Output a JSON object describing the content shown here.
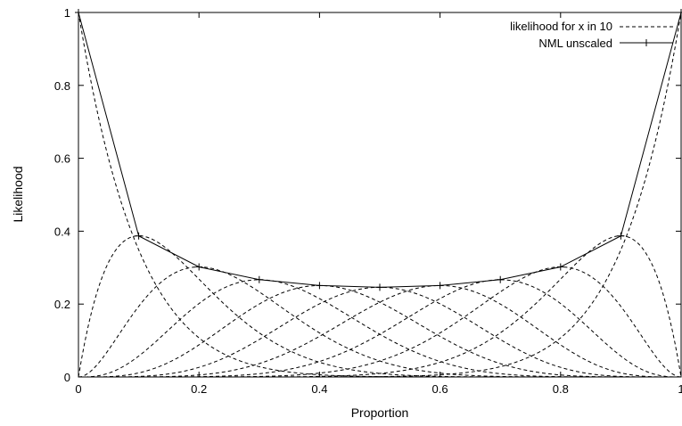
{
  "chart_data": {
    "type": "line",
    "title": "",
    "xlabel": "Proportion",
    "ylabel": "Likelihood",
    "xlim": [
      0,
      1
    ],
    "ylim": [
      0,
      1
    ],
    "grid": false,
    "legend_position": "top-right",
    "x_ticks": [
      "0",
      "0.2",
      "0.4",
      "0.6",
      "0.8",
      "1"
    ],
    "y_ticks": [
      "0",
      "0.2",
      "0.4",
      "0.6",
      "0.8",
      "1"
    ],
    "series": [
      {
        "name": "likelihood for x in 10",
        "style": "dashed",
        "color": "#000000",
        "function": "binomial likelihood C(10,k) p^k (1-p)^(10-k)",
        "n": 10,
        "k_values": [
          0,
          1,
          2,
          3,
          4,
          5,
          6,
          7,
          8,
          9,
          10
        ]
      },
      {
        "name": "NML unscaled",
        "style": "solid",
        "marker": "plus",
        "color": "#000000",
        "x": [
          0,
          0.1,
          0.2,
          0.3,
          0.4,
          0.5,
          0.6,
          0.7,
          0.8,
          0.9,
          1
        ],
        "y": [
          1,
          0.387,
          0.302,
          0.267,
          0.251,
          0.246,
          0.251,
          0.267,
          0.302,
          0.387,
          1
        ]
      }
    ]
  }
}
